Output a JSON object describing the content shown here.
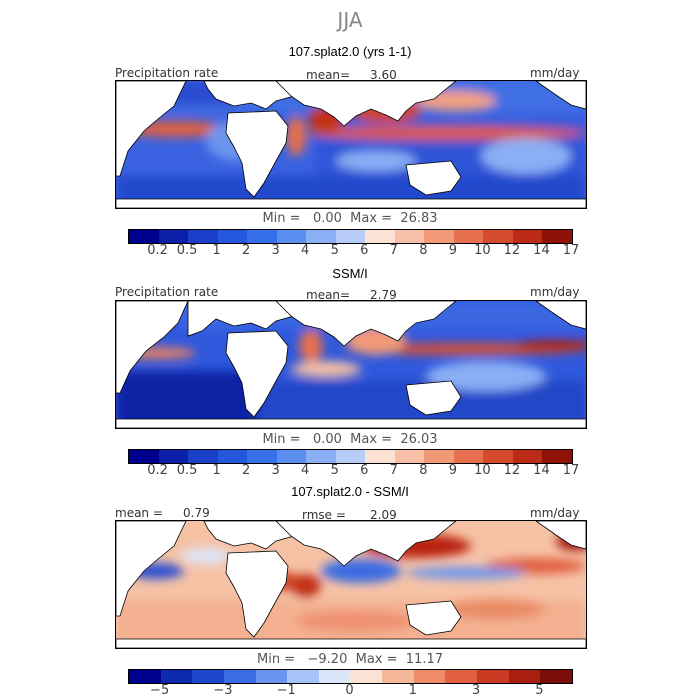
{
  "figure": {
    "title": "JJA"
  },
  "chart_data": [
    {
      "type": "heatmap",
      "title": "107.splat2.0 (yrs 1-1)",
      "left_label": "Precipitation rate",
      "stat_label": "mean=",
      "stat_value": "3.60",
      "units": "mm/day",
      "min_label": "Min =",
      "min_value": "0.00",
      "max_label": "Max =",
      "max_value": "26.83",
      "colorbar_ticks": [
        "0.2",
        "0.5",
        "1",
        "2",
        "3",
        "4",
        "5",
        "6",
        "7",
        "8",
        "9",
        "10",
        "12",
        "14",
        "17"
      ],
      "colors": [
        "#00008f",
        "#0a1fa8",
        "#1a3fc8",
        "#2557dc",
        "#3570e8",
        "#5a8fef",
        "#8aaff5",
        "#b7cdf8",
        "#fce3d6",
        "#f8c0a6",
        "#f29a78",
        "#e6704f",
        "#d64a2e",
        "#bc2a18",
        "#8e1208"
      ]
    },
    {
      "type": "heatmap",
      "title": "SSM/I",
      "left_label": "Precipitation rate",
      "stat_label": "mean=",
      "stat_value": "2.79",
      "units": "mm/day",
      "min_label": "Min =",
      "min_value": "0.00",
      "max_label": "Max =",
      "max_value": "26.03",
      "colorbar_ticks": [
        "0.2",
        "0.5",
        "1",
        "2",
        "3",
        "4",
        "5",
        "6",
        "7",
        "8",
        "9",
        "10",
        "12",
        "14",
        "17"
      ],
      "colors": [
        "#00008f",
        "#0a1fa8",
        "#1a3fc8",
        "#2557dc",
        "#3570e8",
        "#5a8fef",
        "#8aaff5",
        "#b7cdf8",
        "#fce3d6",
        "#f8c0a6",
        "#f29a78",
        "#e6704f",
        "#d64a2e",
        "#bc2a18",
        "#8e1208"
      ]
    },
    {
      "type": "heatmap",
      "title": "107.splat2.0 - SSM/I",
      "left_label": "mean =",
      "left_value": "0.79",
      "stat_label": "rmse =",
      "stat_value": "2.09",
      "units": "mm/day",
      "min_label": "Min =",
      "min_value": "−9.20",
      "max_label": "Max =",
      "max_value": "11.17",
      "colorbar_ticks": [
        "−5",
        "−3",
        "−1",
        "0",
        "1",
        "3",
        "5"
      ],
      "colors": [
        "#00008f",
        "#0e2aae",
        "#1d48cc",
        "#3a6ce3",
        "#6a95ef",
        "#a8c3f7",
        "#dce6fa",
        "#fbe2d5",
        "#f5b799",
        "#ee8c67",
        "#e0603f",
        "#c93a22",
        "#a81f10",
        "#7a0d05"
      ]
    }
  ]
}
